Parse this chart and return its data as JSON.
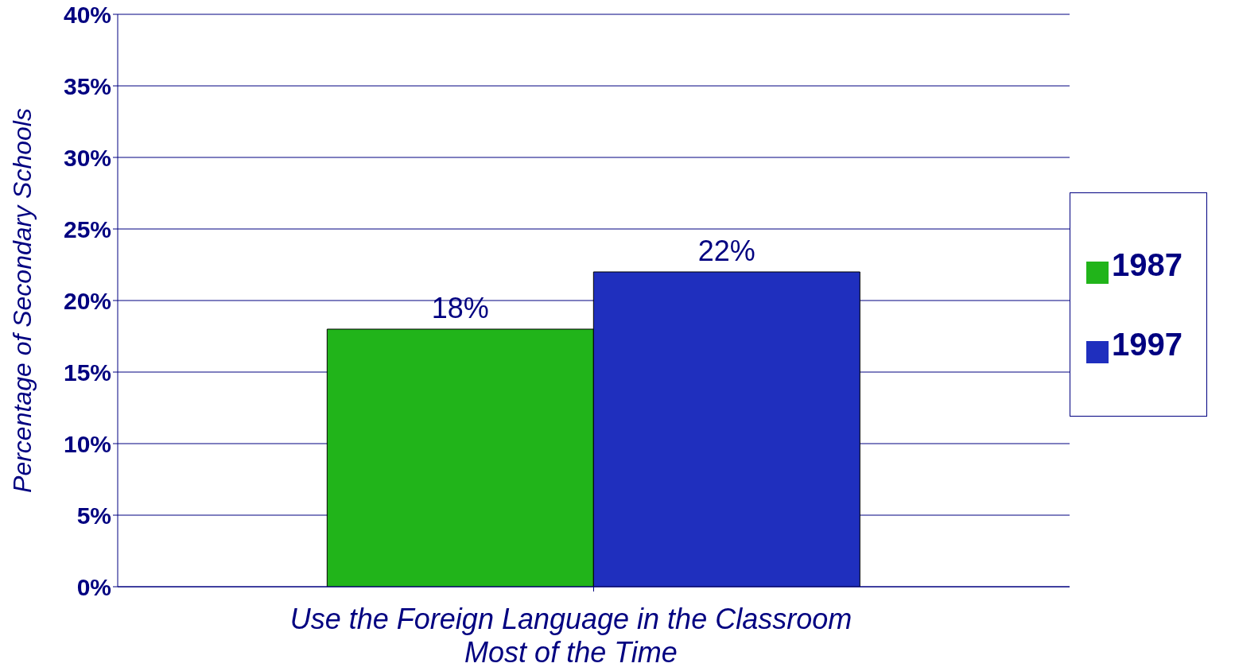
{
  "chart_data": {
    "type": "bar",
    "xlabel": "Use the Foreign Language in the Classroom Most of the Time",
    "ylabel": "Percentage of Secondary Schools",
    "categories": [
      null
    ],
    "series": [
      {
        "name": "1987",
        "color": "#21b41a",
        "values": [
          18
        ],
        "value_labels": [
          "18%"
        ]
      },
      {
        "name": "1997",
        "color": "#1f2fbe",
        "values": [
          22
        ],
        "value_labels": [
          "22%"
        ]
      }
    ],
    "ylim": [
      0,
      40
    ],
    "yticks": [
      {
        "value": 0,
        "label": "0%"
      },
      {
        "value": 5,
        "label": "5%"
      },
      {
        "value": 10,
        "label": "10%"
      },
      {
        "value": 15,
        "label": "15%"
      },
      {
        "value": 20,
        "label": "20%"
      },
      {
        "value": 25,
        "label": "25%"
      },
      {
        "value": 30,
        "label": "30%"
      },
      {
        "value": 35,
        "label": "35%"
      },
      {
        "value": 40,
        "label": "40%"
      }
    ],
    "grid": "y",
    "legend": "right"
  }
}
